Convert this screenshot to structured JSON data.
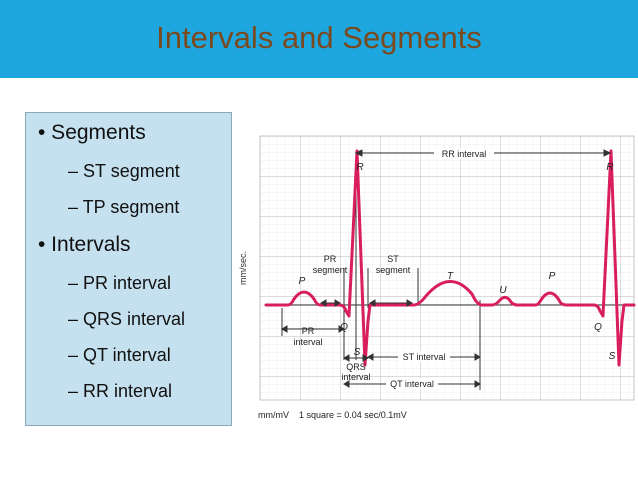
{
  "slide": {
    "title": "Intervals and Segments",
    "colors": {
      "header": "#1ea7df",
      "title": "#7a4a1e",
      "panel": "#c5e0ee",
      "trace": "#d81e5b",
      "grid": "#d0d0d0"
    }
  },
  "list": {
    "segments_label": "• Segments",
    "segments": [
      "– ST segment",
      "– TP segment"
    ],
    "intervals_label": "• Intervals",
    "intervals": [
      "– PR interval",
      "– QRS interval",
      "– QT interval",
      "– RR interval"
    ]
  },
  "ecg": {
    "y_axis_label": "mm/sec.",
    "scale_note": "mm/mV    1 square = 0.04 sec/0.1mV",
    "waves": {
      "p": "P",
      "p2": "P",
      "q": "Q",
      "q2": "Q",
      "r": "R",
      "r2": "R",
      "s": "S",
      "s2": "S",
      "t": "T",
      "u": "U"
    },
    "labels": {
      "rr_interval": "RR interval",
      "pr_segment_1": "PR",
      "pr_segment_2": "segment",
      "st_segment_1": "ST",
      "st_segment_2": "segment",
      "pr_interval_1": "PR",
      "pr_interval_2": "interval",
      "qrs_interval_1": "QRS",
      "qrs_interval_2": "interval",
      "st_interval": "ST interval",
      "qt_interval": "QT interval"
    }
  }
}
